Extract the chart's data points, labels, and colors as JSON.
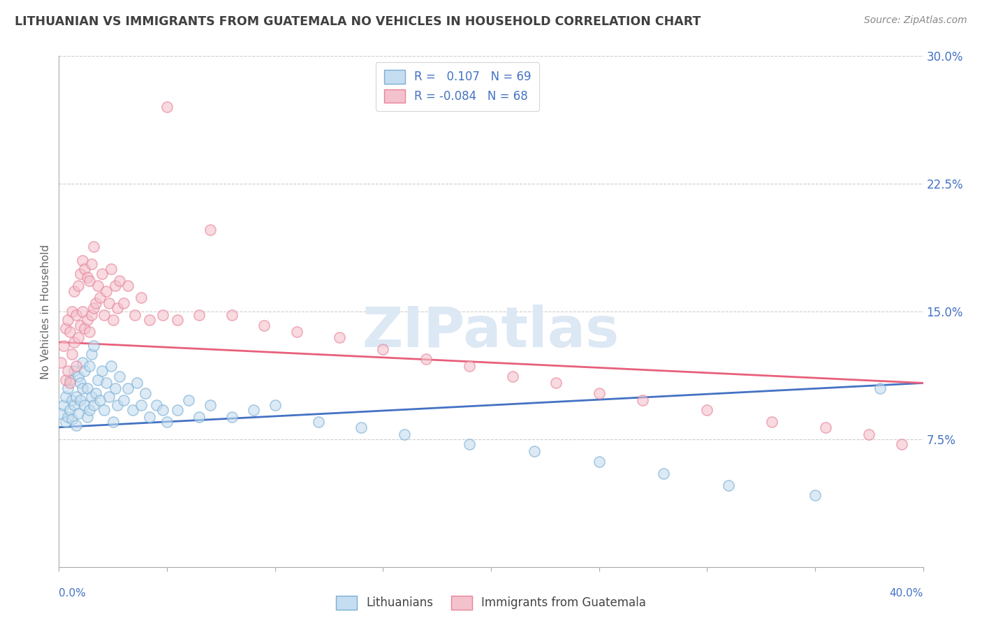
{
  "title": "LITHUANIAN VS IMMIGRANTS FROM GUATEMALA NO VEHICLES IN HOUSEHOLD CORRELATION CHART",
  "source": "Source: ZipAtlas.com",
  "ylabel": "No Vehicles in Household",
  "series": [
    {
      "name": "Lithuanians",
      "R": 0.107,
      "N": 69,
      "face_color": "#c5ddf0",
      "edge_color": "#7aafd4",
      "line_color": "#4472c4",
      "line_y0": 0.082,
      "line_y1": 0.108,
      "x": [
        0.001,
        0.002,
        0.003,
        0.003,
        0.004,
        0.004,
        0.005,
        0.005,
        0.006,
        0.006,
        0.007,
        0.007,
        0.008,
        0.008,
        0.009,
        0.009,
        0.01,
        0.01,
        0.011,
        0.011,
        0.012,
        0.012,
        0.013,
        0.013,
        0.014,
        0.014,
        0.015,
        0.015,
        0.016,
        0.016,
        0.017,
        0.018,
        0.019,
        0.02,
        0.021,
        0.022,
        0.023,
        0.024,
        0.025,
        0.026,
        0.027,
        0.028,
        0.03,
        0.032,
        0.034,
        0.036,
        0.038,
        0.04,
        0.042,
        0.045,
        0.048,
        0.05,
        0.055,
        0.06,
        0.065,
        0.07,
        0.08,
        0.09,
        0.1,
        0.12,
        0.14,
        0.16,
        0.19,
        0.22,
        0.25,
        0.28,
        0.31,
        0.35,
        0.38
      ],
      "y": [
        0.09,
        0.095,
        0.085,
        0.1,
        0.088,
        0.105,
        0.092,
        0.11,
        0.087,
        0.098,
        0.095,
        0.115,
        0.083,
        0.1,
        0.09,
        0.112,
        0.098,
        0.108,
        0.105,
        0.12,
        0.095,
        0.115,
        0.088,
        0.105,
        0.092,
        0.118,
        0.1,
        0.125,
        0.095,
        0.13,
        0.102,
        0.11,
        0.098,
        0.115,
        0.092,
        0.108,
        0.1,
        0.118,
        0.085,
        0.105,
        0.095,
        0.112,
        0.098,
        0.105,
        0.092,
        0.108,
        0.095,
        0.102,
        0.088,
        0.095,
        0.092,
        0.085,
        0.092,
        0.098,
        0.088,
        0.095,
        0.088,
        0.092,
        0.095,
        0.085,
        0.082,
        0.078,
        0.072,
        0.068,
        0.062,
        0.055,
        0.048,
        0.042,
        0.105
      ]
    },
    {
      "name": "Immigrants from Guatemala",
      "R": -0.084,
      "N": 68,
      "face_color": "#f4c2cc",
      "edge_color": "#e8829a",
      "line_color": "#e8607a",
      "line_y0": 0.132,
      "line_y1": 0.108,
      "x": [
        0.001,
        0.002,
        0.003,
        0.003,
        0.004,
        0.004,
        0.005,
        0.005,
        0.006,
        0.006,
        0.007,
        0.007,
        0.008,
        0.008,
        0.009,
        0.009,
        0.01,
        0.01,
        0.011,
        0.011,
        0.012,
        0.012,
        0.013,
        0.013,
        0.014,
        0.014,
        0.015,
        0.015,
        0.016,
        0.016,
        0.017,
        0.018,
        0.019,
        0.02,
        0.021,
        0.022,
        0.023,
        0.024,
        0.025,
        0.026,
        0.027,
        0.028,
        0.03,
        0.032,
        0.035,
        0.038,
        0.042,
        0.048,
        0.055,
        0.065,
        0.08,
        0.095,
        0.11,
        0.13,
        0.15,
        0.17,
        0.19,
        0.21,
        0.23,
        0.25,
        0.27,
        0.3,
        0.33,
        0.355,
        0.375,
        0.39,
        0.05,
        0.07
      ],
      "y": [
        0.12,
        0.13,
        0.11,
        0.14,
        0.115,
        0.145,
        0.108,
        0.138,
        0.125,
        0.15,
        0.132,
        0.162,
        0.118,
        0.148,
        0.135,
        0.165,
        0.142,
        0.172,
        0.15,
        0.18,
        0.14,
        0.175,
        0.145,
        0.17,
        0.138,
        0.168,
        0.148,
        0.178,
        0.152,
        0.188,
        0.155,
        0.165,
        0.158,
        0.172,
        0.148,
        0.162,
        0.155,
        0.175,
        0.145,
        0.165,
        0.152,
        0.168,
        0.155,
        0.165,
        0.148,
        0.158,
        0.145,
        0.148,
        0.145,
        0.148,
        0.148,
        0.142,
        0.138,
        0.135,
        0.128,
        0.122,
        0.118,
        0.112,
        0.108,
        0.102,
        0.098,
        0.092,
        0.085,
        0.082,
        0.078,
        0.072,
        0.27,
        0.198
      ]
    }
  ],
  "xlim": [
    0.0,
    0.4
  ],
  "ylim": [
    0.0,
    0.3
  ],
  "yticks": [
    0.075,
    0.15,
    0.225,
    0.3
  ],
  "ytick_labels": [
    "7.5%",
    "15.0%",
    "22.5%",
    "30.0%"
  ],
  "xtick_positions": [
    0.0,
    0.05,
    0.1,
    0.15,
    0.2,
    0.25,
    0.3,
    0.35,
    0.4
  ],
  "background_color": "#ffffff",
  "grid_color": "#c8c8c8",
  "title_color": "#404040",
  "source_color": "#888888",
  "ylabel_color": "#666666",
  "yticklabel_color": "#4472c4",
  "xticklabel_color": "#4472c4",
  "watermark_text": "ZIPatlas",
  "watermark_color": "#dce8f4",
  "dot_size": 120,
  "dot_alpha": 0.6,
  "dot_linewidth": 1.2
}
